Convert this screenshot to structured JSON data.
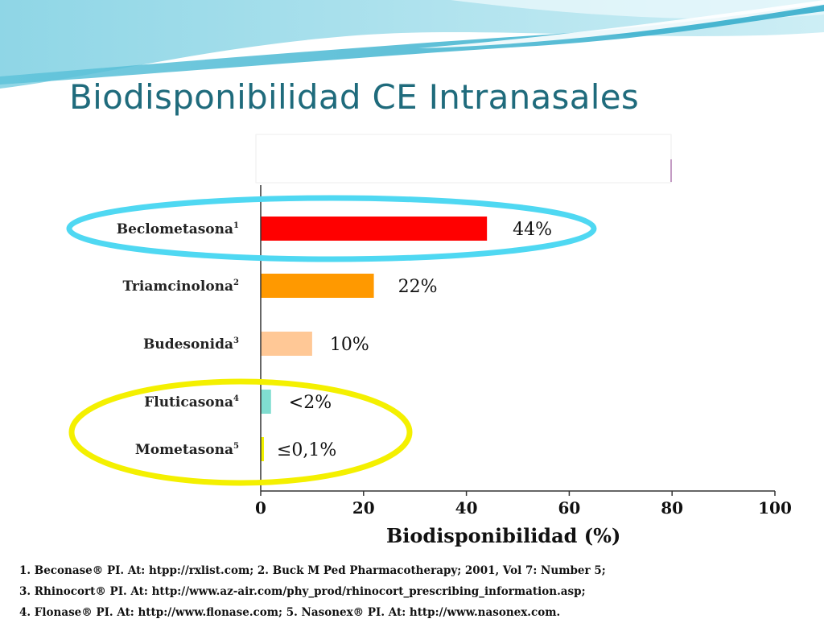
{
  "slide": {
    "title": "Biodisponibilidad CE Intranasales",
    "references": [
      "1. Beconase® PI. At: htpp://rxlist.com;  2. Buck  M Ped Pharmacotherapy; 2001, Vol 7: Number 5;",
      "3. Rhinocort® PI. At: http://www.az-air.com/phy_prod/rhinocort_prescribing_information.asp;",
      "4. Flonase® PI. At: http://www.flonase.com;   5. Nasonex® PI. At: http://www.nasonex.com."
    ]
  },
  "colors": {
    "title": "#1f6b7c",
    "highlight_cyan": "#4fd8f2",
    "highlight_yellow": "#f4f000"
  },
  "chart_data": {
    "type": "bar",
    "orientation": "horizontal",
    "categories": [
      "Beclometasona",
      "Triamcinolona",
      "Budesonida",
      "Fluticasona",
      "Mometasona"
    ],
    "superscripts": [
      "1",
      "2",
      "3",
      "4",
      "5"
    ],
    "values": [
      44,
      22,
      10,
      2,
      0.1
    ],
    "value_labels": [
      "44%",
      "22%",
      "10%",
      "<2%",
      "≤0,1%"
    ],
    "bar_colors": [
      "#ff0000",
      "#ff9900",
      "#ffc896",
      "#80ddd0",
      "#f2f200"
    ],
    "xlim": [
      0,
      100
    ],
    "xticks": [
      0,
      20,
      40,
      60,
      80,
      100
    ],
    "xtick_labels": [
      "0",
      "20",
      "40",
      "60",
      "80",
      "100"
    ],
    "xlabel": "Biodisponibilidad (%)",
    "highlight_groups": [
      {
        "color": "cyan",
        "categories": [
          "Beclometasona"
        ]
      },
      {
        "color": "yellow",
        "categories": [
          "Fluticasona",
          "Mometasona"
        ]
      }
    ]
  }
}
